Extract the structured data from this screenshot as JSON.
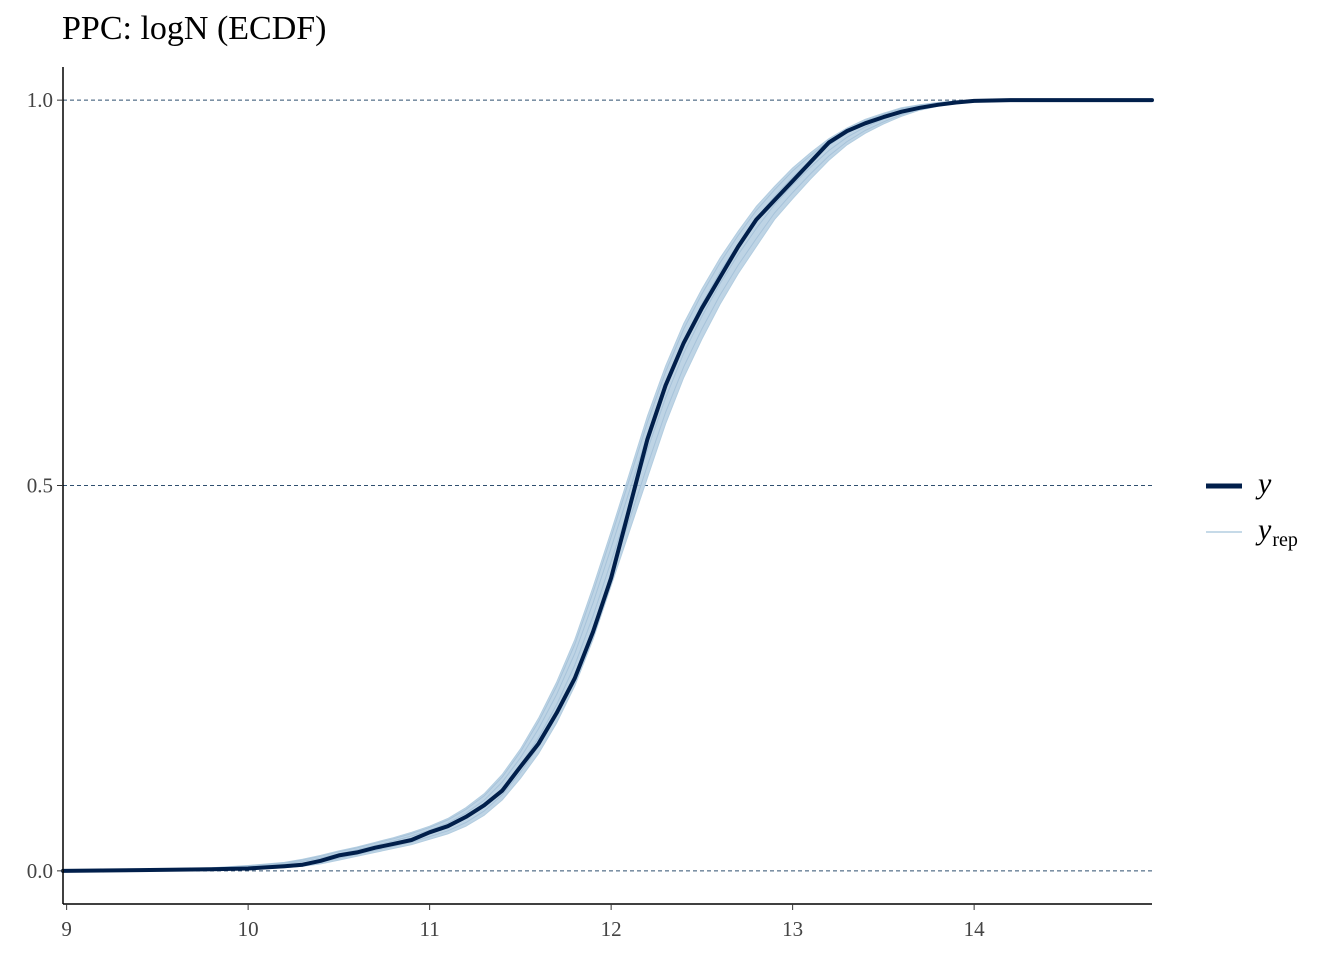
{
  "chart_data": {
    "type": "line",
    "title": "PPC: logN (ECDF)",
    "xlabel": "",
    "ylabel": "",
    "xlim": [
      8.98,
      14.98
    ],
    "ylim": [
      -0.043,
      1.043
    ],
    "x_ticks": [
      "9",
      "10",
      "11",
      "12",
      "13",
      "14"
    ],
    "x_tick_values": [
      9,
      10,
      11,
      12,
      13,
      14
    ],
    "y_ticks": [
      "0.0",
      "0.5",
      "1.0"
    ],
    "y_tick_values": [
      0,
      0.5,
      1
    ],
    "grid": "horizontal dashed at y ticks",
    "legend": "right",
    "series": [
      {
        "name": "y",
        "role": "observed",
        "color": "#011f4b",
        "x": [
          8.98,
          9.4,
          9.8,
          10.0,
          10.2,
          10.3,
          10.4,
          10.5,
          10.6,
          10.7,
          10.8,
          10.9,
          11.0,
          11.1,
          11.2,
          11.3,
          11.4,
          11.5,
          11.6,
          11.7,
          11.8,
          11.9,
          12.0,
          12.1,
          12.2,
          12.3,
          12.4,
          12.5,
          12.6,
          12.7,
          12.8,
          12.9,
          13.0,
          13.1,
          13.2,
          13.3,
          13.4,
          13.5,
          13.6,
          13.7,
          13.8,
          13.9,
          14.0,
          14.2,
          14.98
        ],
        "y": [
          0.0,
          0.001,
          0.002,
          0.003,
          0.006,
          0.008,
          0.013,
          0.02,
          0.024,
          0.03,
          0.035,
          0.04,
          0.05,
          0.058,
          0.07,
          0.085,
          0.104,
          0.135,
          0.165,
          0.205,
          0.25,
          0.31,
          0.38,
          0.47,
          0.56,
          0.63,
          0.685,
          0.73,
          0.77,
          0.81,
          0.845,
          0.87,
          0.895,
          0.92,
          0.945,
          0.96,
          0.97,
          0.978,
          0.985,
          0.99,
          0.994,
          0.997,
          0.999,
          1.0,
          1.0
        ]
      },
      {
        "name": "y_rep",
        "role": "replicated",
        "color": "#b3cde0",
        "x": [
          8.98,
          9.4,
          9.8,
          10.0,
          10.2,
          10.3,
          10.4,
          10.5,
          10.6,
          10.7,
          10.8,
          10.9,
          11.0,
          11.1,
          11.2,
          11.3,
          11.4,
          11.5,
          11.6,
          11.7,
          11.8,
          11.9,
          12.0,
          12.1,
          12.2,
          12.3,
          12.4,
          12.5,
          12.6,
          12.7,
          12.8,
          12.9,
          13.0,
          13.1,
          13.2,
          13.3,
          13.4,
          13.5,
          13.6,
          13.7,
          13.8,
          13.9,
          14.0,
          14.2,
          14.98
        ],
        "y_low": [
          0.0,
          0.0,
          0.001,
          0.002,
          0.004,
          0.006,
          0.009,
          0.014,
          0.019,
          0.024,
          0.029,
          0.034,
          0.041,
          0.048,
          0.058,
          0.072,
          0.092,
          0.12,
          0.152,
          0.192,
          0.24,
          0.3,
          0.37,
          0.44,
          0.51,
          0.58,
          0.64,
          0.69,
          0.735,
          0.775,
          0.81,
          0.845,
          0.872,
          0.898,
          0.922,
          0.942,
          0.957,
          0.969,
          0.979,
          0.987,
          0.992,
          0.996,
          0.998,
          1.0,
          1.0
        ],
        "y_high": [
          0.0,
          0.002,
          0.004,
          0.007,
          0.011,
          0.015,
          0.02,
          0.026,
          0.031,
          0.037,
          0.043,
          0.05,
          0.058,
          0.068,
          0.082,
          0.1,
          0.125,
          0.158,
          0.198,
          0.245,
          0.3,
          0.368,
          0.44,
          0.515,
          0.59,
          0.655,
          0.71,
          0.755,
          0.795,
          0.83,
          0.862,
          0.888,
          0.912,
          0.932,
          0.95,
          0.964,
          0.975,
          0.983,
          0.99,
          0.994,
          0.997,
          0.999,
          1.0,
          1.0,
          1.0
        ]
      }
    ]
  },
  "legend": {
    "items": [
      {
        "label": "y",
        "sub": "",
        "color": "#011f4b"
      },
      {
        "label": "y",
        "sub": "rep",
        "color": "#b3cde0"
      }
    ]
  },
  "colors": {
    "observed": "#011f4b",
    "replicated": "#b3cde0",
    "grid": "#2f4f6f",
    "axis": "#000000"
  }
}
